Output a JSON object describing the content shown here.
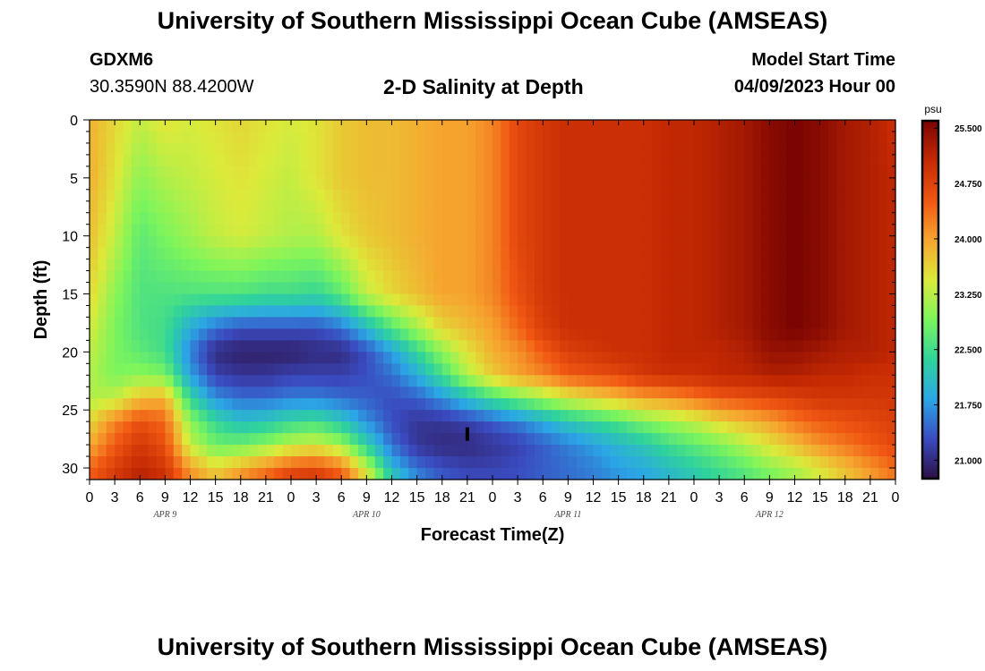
{
  "header": {
    "main_title": "University of Southern Mississippi Ocean Cube (AMSEAS)",
    "station_id": "GDXM6",
    "coordinates": "30.3590N  88.4200W",
    "subtitle": "2-D Salinity at Depth",
    "start_label": "Model Start Time",
    "start_value": "04/09/2023 Hour 00"
  },
  "footer": {
    "title": "University of Southern Mississippi Ocean Cube (AMSEAS)"
  },
  "colors": {
    "stops": [
      "#2d0f46",
      "#3a4bc0",
      "#2ba6e6",
      "#2fd39b",
      "#7cf55c",
      "#dcea3a",
      "#f6a52f",
      "#f05612",
      "#c52a03",
      "#7a0403"
    ]
  },
  "chart_data": {
    "type": "heatmap",
    "title": "2-D Salinity at Depth",
    "xlabel": "Forecast Time(Z)",
    "ylabel": "Depth (ft)",
    "x_ticks": [
      "0",
      "3",
      "6",
      "9",
      "12",
      "15",
      "18",
      "21",
      "0",
      "3",
      "6",
      "9",
      "12",
      "15",
      "18",
      "21",
      "0",
      "3",
      "6",
      "9",
      "12",
      "15",
      "18",
      "21",
      "0",
      "3",
      "6",
      "9",
      "12",
      "15",
      "18",
      "21",
      "0"
    ],
    "x_range_hours": [
      0,
      96
    ],
    "day_labels": [
      {
        "label": "APR 9",
        "hour": 9
      },
      {
        "label": "APR 10",
        "hour": 33
      },
      {
        "label": "APR 11",
        "hour": 57
      },
      {
        "label": "APR 12",
        "hour": 81
      }
    ],
    "y_ticks": [
      0,
      5,
      10,
      15,
      20,
      25,
      30
    ],
    "y_range": [
      0,
      31
    ],
    "colorbar": {
      "unit": "psu",
      "range": [
        20.75,
        25.6
      ],
      "ticks": [
        "25.500",
        "24.750",
        "24.000",
        "23.250",
        "22.500",
        "21.750",
        "21.000"
      ]
    },
    "depth_levels": [
      0,
      5,
      10,
      15,
      18,
      20,
      22,
      24,
      26,
      28,
      30,
      31
    ],
    "time_hours": [
      0,
      3,
      6,
      9,
      12,
      15,
      18,
      21,
      24,
      27,
      30,
      33,
      36,
      39,
      42,
      45,
      48,
      51,
      54,
      57,
      60,
      63,
      66,
      69,
      72,
      75,
      78,
      81,
      84,
      87,
      90,
      93,
      96
    ],
    "salinity_psu": [
      [
        23.9,
        23.6,
        23.3,
        23.5,
        23.4,
        23.5,
        23.6,
        23.5,
        23.4,
        23.5,
        23.7,
        23.8,
        23.8,
        23.9,
        24.0,
        24.0,
        24.2,
        24.7,
        24.9,
        25.0,
        25.0,
        25.0,
        25.0,
        25.1,
        25.1,
        25.2,
        25.3,
        25.5,
        25.6,
        25.5,
        25.3,
        25.2,
        25.0
      ],
      [
        23.9,
        23.5,
        23.0,
        23.2,
        23.3,
        23.4,
        23.5,
        23.4,
        23.3,
        23.5,
        23.7,
        23.8,
        23.8,
        23.9,
        24.0,
        24.0,
        24.2,
        24.7,
        24.9,
        25.0,
        25.0,
        25.0,
        25.0,
        25.1,
        25.1,
        25.2,
        25.3,
        25.5,
        25.6,
        25.5,
        25.3,
        25.2,
        25.1
      ],
      [
        23.8,
        23.3,
        22.7,
        22.9,
        23.1,
        23.3,
        23.4,
        23.3,
        23.2,
        23.2,
        23.5,
        23.7,
        23.8,
        23.9,
        24.0,
        24.0,
        24.2,
        24.7,
        24.9,
        25.0,
        25.0,
        25.0,
        25.0,
        25.1,
        25.1,
        25.2,
        25.3,
        25.5,
        25.6,
        25.5,
        25.3,
        25.2,
        25.1
      ],
      [
        23.6,
        23.0,
        22.6,
        22.6,
        22.6,
        22.6,
        22.6,
        22.5,
        22.5,
        22.4,
        22.7,
        23.3,
        23.6,
        23.8,
        24.0,
        24.0,
        24.2,
        24.6,
        24.9,
        25.0,
        25.0,
        25.0,
        25.0,
        25.1,
        25.1,
        25.2,
        25.3,
        25.5,
        25.6,
        25.5,
        25.3,
        25.2,
        25.1
      ],
      [
        23.4,
        22.9,
        22.6,
        22.5,
        21.9,
        21.5,
        21.3,
        21.3,
        21.3,
        21.3,
        21.5,
        22.0,
        22.6,
        23.1,
        23.6,
        23.8,
        24.0,
        24.4,
        24.8,
        25.0,
        25.0,
        25.0,
        25.0,
        25.1,
        25.1,
        25.2,
        25.3,
        25.5,
        25.6,
        25.5,
        25.3,
        25.2,
        25.1
      ],
      [
        23.3,
        22.9,
        22.7,
        22.5,
        21.6,
        21.0,
        20.9,
        20.9,
        20.9,
        21.0,
        21.0,
        21.3,
        21.8,
        22.4,
        23.0,
        23.5,
        23.9,
        24.1,
        24.5,
        24.8,
        24.9,
        25.0,
        25.0,
        25.1,
        25.1,
        25.1,
        25.2,
        25.4,
        25.4,
        25.3,
        25.2,
        25.2,
        25.1
      ],
      [
        23.2,
        22.9,
        23.0,
        22.9,
        21.8,
        21.2,
        21.1,
        21.1,
        21.2,
        21.2,
        21.2,
        21.3,
        21.5,
        21.9,
        22.5,
        23.2,
        23.7,
        24.0,
        24.2,
        24.5,
        24.6,
        24.7,
        24.9,
        25.0,
        25.0,
        25.1,
        25.1,
        25.2,
        25.2,
        25.1,
        25.1,
        25.0,
        25.0
      ],
      [
        23.2,
        23.3,
        23.8,
        23.9,
        22.4,
        21.7,
        21.5,
        21.5,
        21.6,
        21.6,
        21.5,
        21.4,
        21.3,
        21.4,
        21.7,
        22.1,
        22.5,
        22.8,
        23.1,
        23.4,
        23.6,
        23.8,
        24.0,
        24.1,
        24.3,
        24.5,
        24.6,
        24.7,
        24.8,
        24.9,
        24.9,
        24.9,
        24.9
      ],
      [
        23.6,
        24.2,
        24.6,
        24.4,
        23.0,
        22.4,
        22.1,
        22.2,
        22.4,
        22.5,
        22.2,
        21.7,
        21.3,
        21.1,
        21.1,
        21.2,
        21.4,
        21.6,
        21.9,
        22.2,
        22.4,
        22.6,
        22.9,
        23.1,
        23.3,
        23.6,
        23.8,
        24.0,
        24.3,
        24.5,
        24.6,
        24.7,
        24.8
      ],
      [
        23.9,
        24.5,
        24.9,
        24.6,
        23.3,
        22.8,
        22.8,
        23.0,
        23.3,
        23.4,
        23.1,
        22.3,
        21.5,
        21.1,
        21.0,
        21.0,
        21.1,
        21.2,
        21.4,
        21.6,
        21.8,
        22.0,
        22.2,
        22.5,
        22.7,
        22.9,
        23.2,
        23.5,
        23.8,
        24.1,
        24.3,
        24.5,
        24.7
      ],
      [
        24.4,
        24.8,
        25.1,
        24.9,
        24.0,
        23.6,
        23.9,
        24.2,
        24.5,
        24.6,
        24.3,
        23.3,
        22.0,
        21.5,
        21.3,
        21.2,
        21.2,
        21.3,
        21.4,
        21.5,
        21.6,
        21.8,
        21.9,
        22.1,
        22.3,
        22.5,
        22.7,
        23.0,
        23.2,
        23.5,
        23.8,
        24.1,
        24.4
      ],
      [
        24.5,
        24.9,
        25.2,
        25.0,
        24.2,
        23.8,
        24.2,
        24.5,
        24.9,
        25.0,
        24.6,
        23.6,
        22.3,
        21.7,
        21.4,
        21.3,
        21.3,
        21.3,
        21.4,
        21.5,
        21.6,
        21.7,
        21.8,
        22.0,
        22.2,
        22.4,
        22.6,
        22.8,
        23.1,
        23.4,
        23.7,
        24.0,
        24.3
      ]
    ]
  }
}
